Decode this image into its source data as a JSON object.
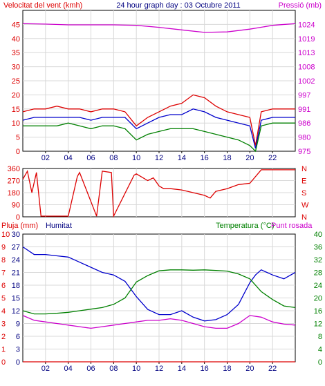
{
  "chart_data": [
    {
      "type": "line",
      "title": "24 hour graph day : 03 Octubre 2011",
      "left_label": "Velocitat del vent (kmh)",
      "right_label": "Pressió (mb)",
      "x_ticks": [
        "02",
        "04",
        "06",
        "08",
        "10",
        "12",
        "14",
        "16",
        "18",
        "20",
        "22"
      ],
      "x_range": [
        0,
        24
      ],
      "y_left_range": [
        0,
        50
      ],
      "y_left_ticks": [
        "0",
        "5",
        "10",
        "15",
        "20",
        "25",
        "30",
        "35",
        "40",
        "45"
      ],
      "y_right_range": [
        973.5,
        1029.8
      ],
      "y_right_ticks": [
        "975",
        "980",
        "986",
        "991",
        "997",
        "1002",
        "1008",
        "1013",
        "1019",
        "1024"
      ],
      "grid": true,
      "series": [
        {
          "color": "#dd0000",
          "axis": "left",
          "x": [
            0,
            1,
            2,
            3,
            4,
            5,
            6,
            7,
            8,
            9,
            10,
            11,
            12,
            13,
            14,
            15,
            16,
            17,
            18,
            19,
            20,
            20.5,
            21,
            22,
            23,
            24
          ],
          "values": [
            14,
            15,
            15,
            16,
            15,
            15,
            14,
            15,
            15,
            14,
            9,
            12,
            14,
            16,
            17,
            20,
            19,
            16,
            14,
            13,
            12,
            2,
            14,
            15,
            15,
            15
          ]
        },
        {
          "color": "#0000cc",
          "axis": "left",
          "x": [
            0,
            1,
            2,
            3,
            4,
            5,
            6,
            7,
            8,
            9,
            10,
            11,
            12,
            13,
            14,
            15,
            16,
            17,
            18,
            19,
            20,
            20.5,
            21,
            22,
            23,
            24
          ],
          "values": [
            11,
            12,
            12,
            12,
            12,
            12,
            11,
            12,
            12,
            12,
            8,
            10,
            12,
            13,
            13,
            15,
            14,
            12,
            11,
            10,
            9,
            1,
            11,
            12,
            12,
            12
          ]
        },
        {
          "color": "#008000",
          "axis": "left",
          "x": [
            0,
            1,
            2,
            3,
            4,
            5,
            6,
            7,
            8,
            9,
            10,
            11,
            12,
            13,
            14,
            15,
            16,
            17,
            18,
            19,
            20,
            20.5,
            21,
            22,
            23,
            24
          ],
          "values": [
            9,
            9,
            9,
            9,
            10,
            9,
            8,
            9,
            9,
            8,
            4,
            6,
            7,
            8,
            8,
            8,
            7,
            6,
            5,
            4,
            2,
            0,
            9,
            10,
            10,
            10
          ]
        },
        {
          "color": "#cc00cc",
          "axis": "right",
          "x": [
            0,
            2,
            4,
            6,
            8,
            10,
            12,
            14,
            16,
            18,
            20,
            22,
            24
          ],
          "values": [
            1024.5,
            1024.3,
            1024,
            1024,
            1024,
            1023.8,
            1023,
            1022,
            1021,
            1021.2,
            1022.3,
            1023.8,
            1024.5
          ]
        }
      ]
    },
    {
      "type": "line",
      "y_range": [
        0,
        360
      ],
      "y_left_ticks": [
        "0",
        "90",
        "180",
        "270",
        "360"
      ],
      "y_right_ticks": [
        "N",
        "W",
        "S",
        "E",
        "N"
      ],
      "x_range": [
        0,
        24
      ],
      "grid": true,
      "series": [
        {
          "color": "#dd0000",
          "x": [
            0,
            0.4,
            0.8,
            1.2,
            1.6,
            2,
            2.8,
            3,
            4,
            4.8,
            5,
            6.5,
            7,
            7.8,
            8,
            9.8,
            10,
            11,
            11.5,
            12,
            12.4,
            13,
            14,
            15,
            16,
            16.5,
            17,
            18,
            19,
            20,
            21,
            22,
            23,
            24
          ],
          "values": [
            280,
            340,
            180,
            330,
            5,
            5,
            5,
            5,
            5,
            300,
            330,
            5,
            340,
            330,
            5,
            310,
            320,
            270,
            290,
            230,
            210,
            210,
            200,
            180,
            160,
            140,
            190,
            210,
            240,
            250,
            350,
            350,
            350,
            350
          ]
        }
      ]
    },
    {
      "type": "line",
      "left_label_a": "Pluja (mm)",
      "left_label_b": "Humitat",
      "right_label_a": "Temperatura (°C)",
      "right_label_b": "Punt rosada",
      "x_ticks": [
        "02",
        "04",
        "06",
        "08",
        "10",
        "12",
        "14",
        "16",
        "18",
        "20",
        "22"
      ],
      "x_range": [
        0,
        24
      ],
      "y_left_a_ticks": [
        "0",
        "1",
        "2",
        "3",
        "4",
        "5",
        "6",
        "7",
        "8",
        "9",
        "10"
      ],
      "y_left_b_ticks": [
        "0",
        "3",
        "6",
        "9",
        "12",
        "15",
        "18",
        "21",
        "24",
        "27",
        "30"
      ],
      "y_left_range": [
        0,
        100
      ],
      "y_right_ticks": [
        "0",
        "4",
        "8",
        "12",
        "16",
        "20",
        "24",
        "28",
        "32",
        "36",
        "40"
      ],
      "y_right_range": [
        0,
        40
      ],
      "grid": true,
      "series": [
        {
          "color": "#0000cc",
          "axis": "left",
          "x": [
            0,
            1,
            2,
            3,
            4,
            5,
            6,
            7,
            8,
            9,
            10,
            11,
            12,
            13,
            14,
            15,
            16,
            17,
            18,
            19,
            20,
            20.5,
            21,
            22,
            23,
            24
          ],
          "values": [
            90,
            84,
            84,
            83,
            82,
            78,
            74,
            70,
            68,
            63,
            51,
            41,
            37,
            37,
            40,
            35,
            32,
            33,
            37,
            45,
            62,
            68,
            72,
            68,
            65,
            70
          ]
        },
        {
          "color": "#008000",
          "axis": "right",
          "x": [
            0,
            1,
            2,
            3,
            4,
            5,
            6,
            7,
            8,
            9,
            10,
            11,
            12,
            13,
            14,
            15,
            16,
            17,
            18,
            19,
            20,
            21,
            22,
            23,
            24
          ],
          "values": [
            16,
            15,
            15,
            15.2,
            15.5,
            16,
            16.5,
            17,
            18,
            20,
            25,
            27,
            28.5,
            28.8,
            28.8,
            28.7,
            28.8,
            28.6,
            28.4,
            27.5,
            26,
            22,
            19.5,
            17.5,
            17
          ]
        },
        {
          "color": "#cc00cc",
          "axis": "right",
          "x": [
            0,
            1,
            2,
            3,
            4,
            5,
            6,
            7,
            8,
            9,
            10,
            11,
            12,
            13,
            14,
            15,
            16,
            17,
            18,
            19,
            20,
            21,
            22,
            23,
            24
          ],
          "values": [
            14.5,
            13,
            12.5,
            12,
            11.5,
            11,
            10.5,
            11,
            11.5,
            12,
            12.5,
            13,
            13,
            13.5,
            13,
            12,
            11,
            10.5,
            10.5,
            12,
            14.5,
            14,
            12.5,
            11.8,
            11.5
          ]
        },
        {
          "color": "#dd0000",
          "axis": "left",
          "x": [
            0,
            24
          ],
          "values": [
            0,
            0
          ]
        }
      ]
    }
  ]
}
